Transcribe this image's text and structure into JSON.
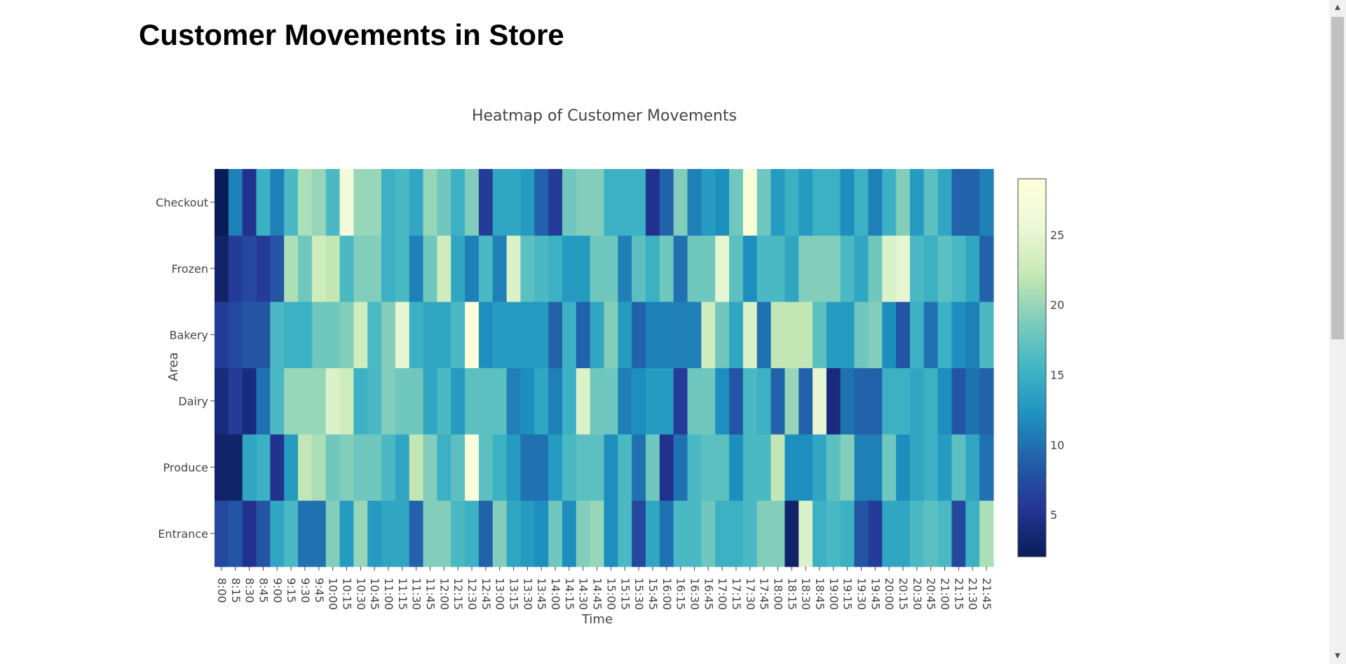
{
  "page": {
    "title": "Customer Movements in Store"
  },
  "chart_data": {
    "type": "heatmap",
    "title": "Heatmap of Customer Movements",
    "xlabel": "Time",
    "ylabel": "Area",
    "colorscale": "YlGnBu",
    "colorscale_stops": [
      "#081d58",
      "#253494",
      "#225ea8",
      "#1d91c0",
      "#41b6c4",
      "#7fcdbb",
      "#c7e9b4",
      "#edf8d9",
      "#ffffd9"
    ],
    "zmin": 2,
    "zmax": 29,
    "colorbar_ticks": [
      5,
      10,
      15,
      20,
      25
    ],
    "y": [
      "Entrance",
      "Produce",
      "Dairy",
      "Bakery",
      "Frozen",
      "Checkout"
    ],
    "x": [
      "8:00",
      "8:15",
      "8:30",
      "8:45",
      "9:00",
      "9:15",
      "9:30",
      "9:45",
      "10:00",
      "10:15",
      "10:30",
      "10:45",
      "11:00",
      "11:15",
      "11:30",
      "11:45",
      "12:00",
      "12:15",
      "12:30",
      "12:45",
      "13:00",
      "13:15",
      "13:30",
      "13:45",
      "14:00",
      "14:15",
      "14:30",
      "14:45",
      "15:00",
      "15:15",
      "15:30",
      "15:45",
      "16:00",
      "16:15",
      "16:30",
      "16:45",
      "17:00",
      "17:15",
      "17:30",
      "17:45",
      "18:00",
      "18:15",
      "18:30",
      "18:45",
      "19:00",
      "19:15",
      "19:30",
      "19:45",
      "20:00",
      "20:15",
      "20:30",
      "20:45",
      "21:00",
      "21:15",
      "21:30",
      "21:45"
    ],
    "z": [
      [
        7,
        8,
        5,
        8,
        14,
        16,
        10,
        10,
        19,
        13,
        20,
        13,
        14,
        14,
        9,
        19,
        19,
        16,
        15,
        9,
        19,
        14,
        13,
        12,
        18,
        12,
        19,
        20,
        12,
        16,
        7,
        14,
        10,
        16,
        16,
        18,
        15,
        15,
        16,
        19,
        19,
        3,
        24,
        15,
        16,
        15,
        8,
        6,
        14,
        14,
        16,
        17,
        16,
        7,
        15,
        21
      ],
      [
        3,
        3,
        14,
        15,
        5,
        13,
        22,
        21,
        18,
        19,
        18,
        18,
        16,
        14,
        22,
        19,
        15,
        17,
        28,
        17,
        15,
        13,
        10,
        10,
        13,
        16,
        17,
        17,
        12,
        16,
        10,
        18,
        5,
        10,
        16,
        17,
        17,
        12,
        16,
        16,
        22,
        12,
        12,
        14,
        17,
        19,
        11,
        11,
        18,
        12,
        14,
        15,
        13,
        17,
        14,
        10
      ],
      [
        4,
        6,
        4,
        10,
        16,
        20,
        20,
        20,
        24,
        23,
        15,
        16,
        19,
        18,
        18,
        14,
        16,
        13,
        17,
        17,
        17,
        11,
        12,
        14,
        11,
        15,
        24,
        18,
        18,
        11,
        12,
        13,
        13,
        6,
        18,
        18,
        12,
        8,
        16,
        15,
        9,
        20,
        9,
        25,
        4,
        10,
        9,
        9,
        15,
        15,
        14,
        15,
        12,
        8,
        10,
        9
      ],
      [
        6,
        7,
        8,
        8,
        16,
        15,
        15,
        18,
        18,
        19,
        23,
        16,
        19,
        25,
        15,
        14,
        14,
        16,
        29,
        12,
        13,
        13,
        13,
        13,
        9,
        15,
        9,
        14,
        19,
        13,
        9,
        11,
        11,
        11,
        11,
        23,
        18,
        14,
        24,
        10,
        22,
        22,
        22,
        17,
        13,
        13,
        18,
        19,
        12,
        8,
        15,
        10,
        15,
        12,
        11,
        16
      ],
      [
        3,
        6,
        7,
        6,
        8,
        21,
        18,
        23,
        22,
        16,
        19,
        19,
        15,
        16,
        11,
        18,
        23,
        14,
        11,
        16,
        11,
        24,
        17,
        16,
        15,
        13,
        13,
        18,
        18,
        11,
        17,
        15,
        18,
        10,
        18,
        18,
        25,
        17,
        12,
        16,
        16,
        14,
        19,
        19,
        19,
        16,
        14,
        18,
        24,
        25,
        16,
        15,
        17,
        16,
        14,
        9
      ],
      [
        2,
        11,
        5,
        15,
        11,
        16,
        21,
        20,
        16,
        27,
        20,
        20,
        15,
        16,
        14,
        20,
        18,
        15,
        19,
        6,
        14,
        14,
        13,
        9,
        6,
        18,
        19,
        19,
        15,
        15,
        15,
        5,
        9,
        19,
        11,
        13,
        12,
        18,
        28,
        18,
        13,
        15,
        13,
        15,
        15,
        12,
        15,
        11,
        15,
        19,
        13,
        17,
        14,
        9,
        9,
        11
      ]
    ]
  }
}
